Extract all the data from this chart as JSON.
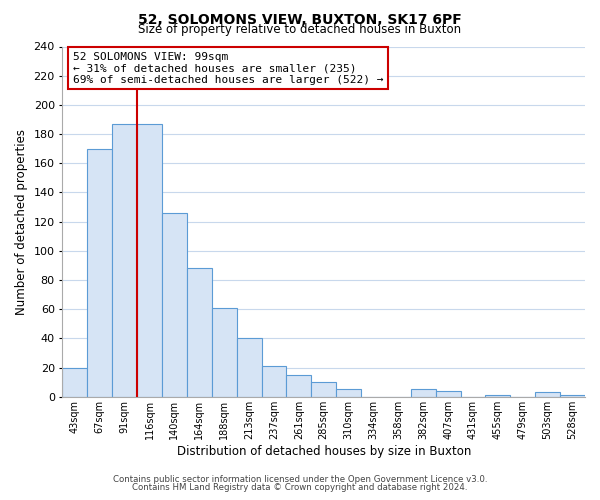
{
  "title": "52, SOLOMONS VIEW, BUXTON, SK17 6PF",
  "subtitle": "Size of property relative to detached houses in Buxton",
  "xlabel": "Distribution of detached houses by size in Buxton",
  "ylabel": "Number of detached properties",
  "bar_labels": [
    "43sqm",
    "67sqm",
    "91sqm",
    "116sqm",
    "140sqm",
    "164sqm",
    "188sqm",
    "213sqm",
    "237sqm",
    "261sqm",
    "285sqm",
    "310sqm",
    "334sqm",
    "358sqm",
    "382sqm",
    "407sqm",
    "431sqm",
    "455sqm",
    "479sqm",
    "503sqm",
    "528sqm"
  ],
  "bar_values": [
    20,
    170,
    187,
    187,
    126,
    88,
    61,
    40,
    21,
    15,
    10,
    5,
    0,
    0,
    5,
    4,
    0,
    1,
    0,
    3,
    1
  ],
  "bar_color": "#d6e4f5",
  "bar_edge_color": "#5b9bd5",
  "vline_color": "#cc0000",
  "vline_x_index": 2,
  "annotation_text": "52 SOLOMONS VIEW: 99sqm\n← 31% of detached houses are smaller (235)\n69% of semi-detached houses are larger (522) →",
  "annotation_box_edge": "#cc0000",
  "ylim": [
    0,
    240
  ],
  "yticks": [
    0,
    20,
    40,
    60,
    80,
    100,
    120,
    140,
    160,
    180,
    200,
    220,
    240
  ],
  "footer1": "Contains HM Land Registry data © Crown copyright and database right 2024.",
  "footer2": "Contains public sector information licensed under the Open Government Licence v3.0.",
  "bg_color": "#ffffff",
  "grid_color": "#c8d8ec"
}
